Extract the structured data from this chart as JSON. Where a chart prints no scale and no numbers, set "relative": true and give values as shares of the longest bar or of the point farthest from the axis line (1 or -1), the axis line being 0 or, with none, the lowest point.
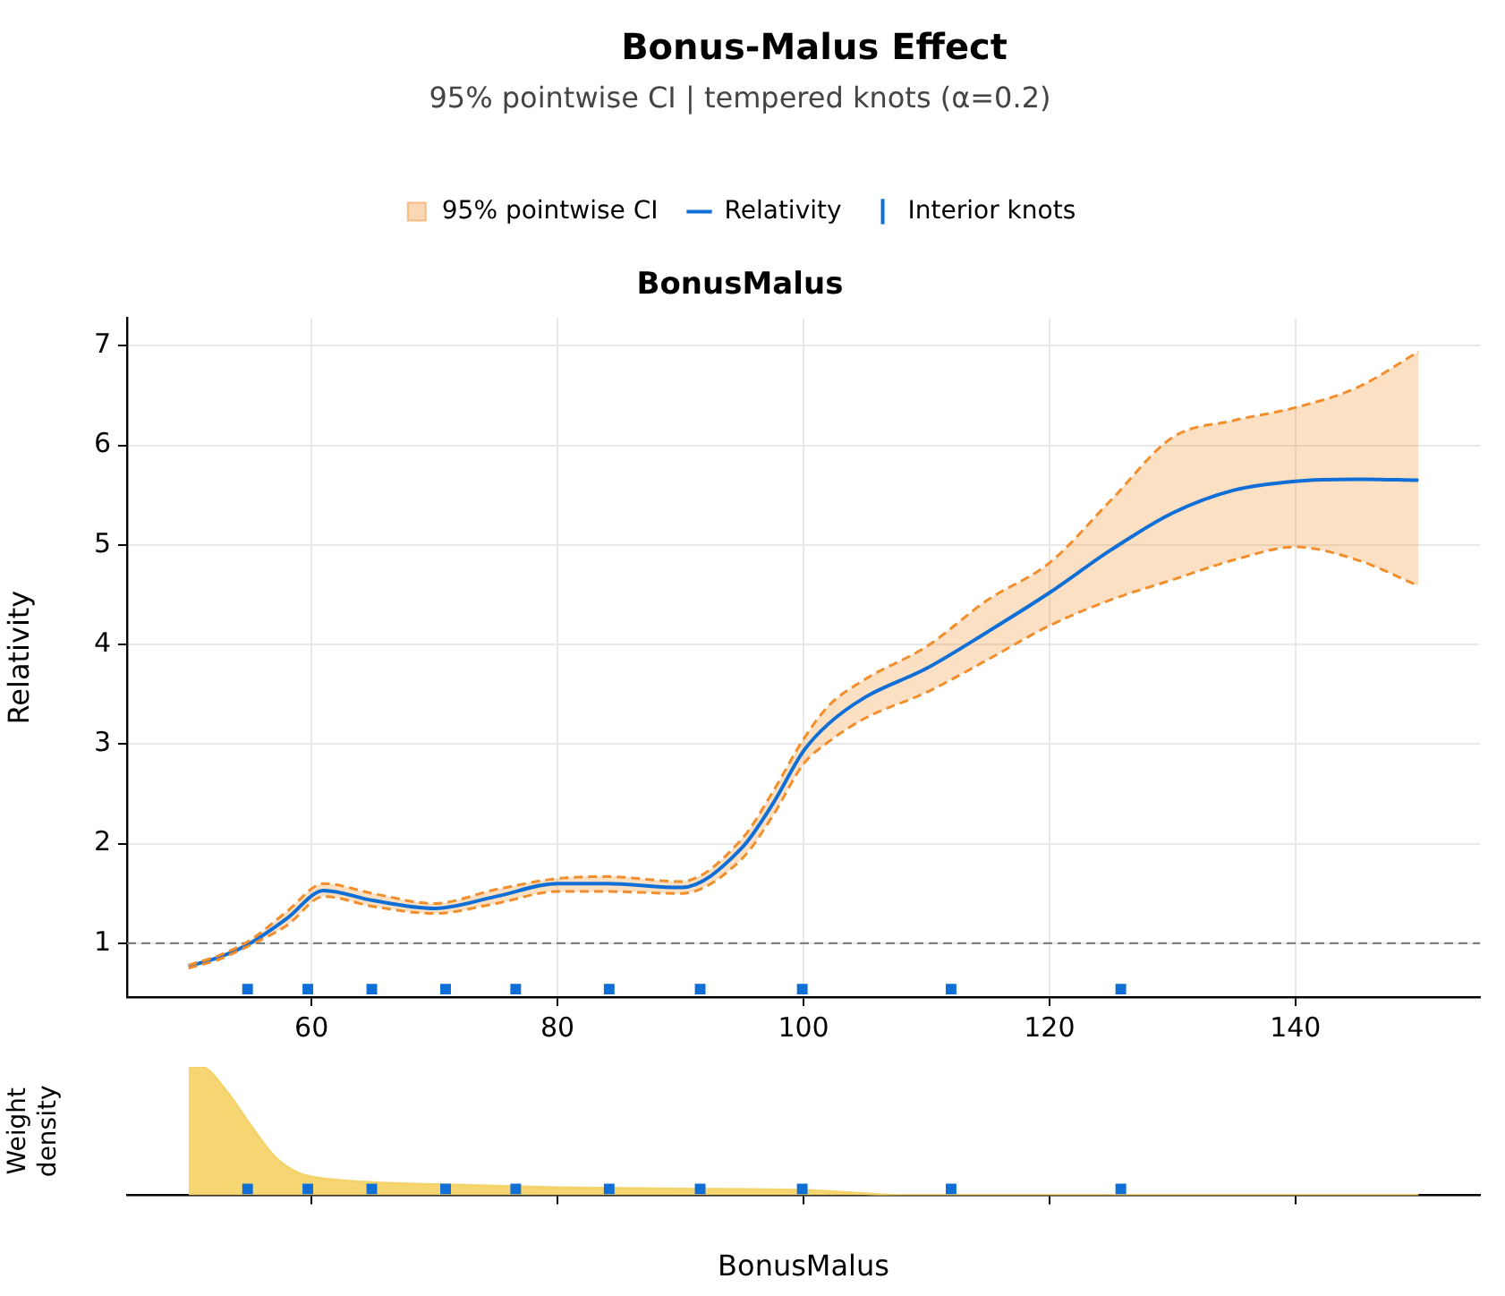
{
  "chart_data": [
    {
      "type": "line",
      "title": "Bonus-Malus Effect",
      "subtitle": "95% pointwise CI | tempered knots (α=0.2)",
      "annotations": [
        "BonusMalus"
      ],
      "ylabel": "Relativity",
      "xlim": [
        45,
        155
      ],
      "xticks": [
        60,
        80,
        100,
        120,
        140
      ],
      "ylim": [
        0.46,
        7.28
      ],
      "yticks": [
        1,
        2,
        3,
        4,
        5,
        6,
        7
      ],
      "grid": true,
      "legend": "top",
      "x": [
        50,
        52.5,
        55,
        58,
        61,
        65,
        70,
        75,
        80,
        84,
        90,
        95,
        97.5,
        100,
        102,
        105,
        110,
        115,
        120,
        125,
        130,
        135,
        140,
        145,
        150
      ],
      "series": [
        {
          "name": "95% pointwise CI",
          "color": "#f28e2b",
          "line_style": "dashed",
          "values": [
            0.78,
            0.88,
            1.03,
            1.32,
            1.6,
            1.5,
            1.4,
            1.54,
            1.65,
            1.67,
            1.62,
            2.05,
            2.52,
            3.05,
            3.38,
            3.65,
            3.98,
            4.45,
            4.82,
            5.45,
            6.08,
            6.25,
            6.38,
            6.58,
            6.94
          ]
        },
        {
          "color": "#f28e2b",
          "line_style": "dashed",
          "values": [
            0.75,
            0.84,
            0.98,
            1.18,
            1.47,
            1.37,
            1.3,
            1.4,
            1.52,
            1.52,
            1.5,
            1.85,
            2.28,
            2.8,
            3.02,
            3.26,
            3.52,
            3.85,
            4.19,
            4.45,
            4.65,
            4.85,
            4.98,
            4.85,
            4.59
          ]
        },
        {
          "name": "Relativity",
          "color": "#0f6fd6",
          "values": [
            0.77,
            0.86,
            1.0,
            1.25,
            1.53,
            1.43,
            1.35,
            1.47,
            1.6,
            1.6,
            1.56,
            1.96,
            2.4,
            2.93,
            3.2,
            3.47,
            3.76,
            4.13,
            4.52,
            4.95,
            5.32,
            5.55,
            5.64,
            5.66,
            5.65
          ],
          "lower": [
            0.75,
            0.84,
            0.98,
            1.18,
            1.47,
            1.37,
            1.3,
            1.4,
            1.52,
            1.52,
            1.5,
            1.85,
            2.28,
            2.8,
            3.02,
            3.26,
            3.52,
            3.85,
            4.19,
            4.45,
            4.65,
            4.85,
            4.98,
            4.85,
            4.59
          ],
          "upper": [
            0.78,
            0.88,
            1.03,
            1.32,
            1.6,
            1.5,
            1.4,
            1.54,
            1.65,
            1.67,
            1.62,
            2.05,
            2.52,
            3.05,
            3.38,
            3.65,
            3.98,
            4.45,
            4.82,
            5.45,
            6.08,
            6.25,
            6.38,
            6.58,
            6.94
          ]
        },
        {
          "name": "Interior knots",
          "type": "scatter",
          "color": "#0f6fd6",
          "x": [
            54.8,
            59.7,
            64.9,
            70.9,
            76.6,
            84.2,
            91.6,
            99.9,
            112,
            125.8
          ],
          "values": [
            0.54,
            0.54,
            0.54,
            0.54,
            0.54,
            0.54,
            0.54,
            0.54,
            0.54,
            0.54
          ]
        }
      ],
      "ref_lines": [
        {
          "axis": "y",
          "value": 1,
          "color": "#808080",
          "line_style": "dashed"
        }
      ]
    },
    {
      "type": "area",
      "relative": true,
      "ylabel": "Weight density",
      "xlabel": "BonusMalus",
      "xlim": [
        45,
        155
      ],
      "xticks": [
        60,
        80,
        100,
        120,
        140
      ],
      "tick_labels": false,
      "series": [
        {
          "color": "#f5d36b",
          "x": [
            50,
            51,
            53,
            55,
            57,
            59,
            61,
            65,
            70,
            80,
            90,
            100,
            104,
            108,
            150
          ],
          "values": [
            1,
            1,
            0.82,
            0.55,
            0.3,
            0.17,
            0.13,
            0.1,
            0.085,
            0.06,
            0.05,
            0.04,
            0.02,
            0,
            0
          ]
        },
        {
          "type": "scatter",
          "color": "#0f6fd6",
          "x": [
            54.8,
            59.7,
            64.9,
            70.9,
            76.6,
            84.2,
            91.6,
            99.9,
            112,
            125.8
          ],
          "values": [
            0.05,
            0.05,
            0.05,
            0.05,
            0.05,
            0.05,
            0.05,
            0.05,
            0.05,
            0.05
          ]
        }
      ]
    }
  ]
}
